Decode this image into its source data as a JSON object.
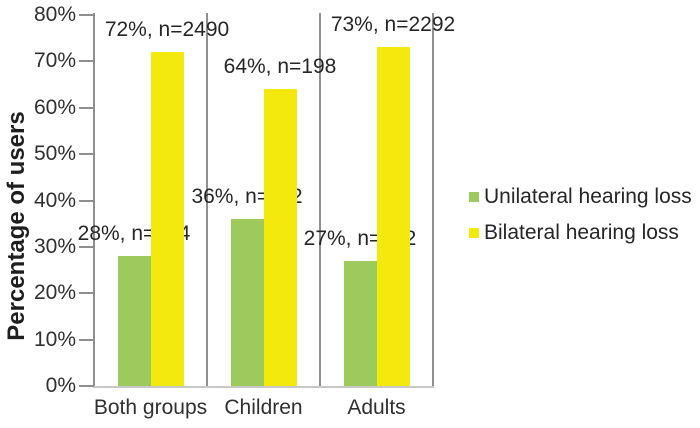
{
  "chart_data": {
    "type": "bar",
    "title": "",
    "xlabel": "",
    "ylabel": "Percentage of users",
    "categories": [
      "Both groups",
      "Children",
      "Adults"
    ],
    "series": [
      {
        "name": "Unilateral hearing loss",
        "color": "#9cca5d",
        "values": [
          28,
          36,
          27
        ],
        "counts": [
          974,
          112,
          862
        ],
        "data_labels": [
          "28%, n=974",
          "36%, n=112",
          "27%, n=862"
        ]
      },
      {
        "name": "Bilateral hearing loss",
        "color": "#f4e90d",
        "values": [
          72,
          64,
          73
        ],
        "counts": [
          2490,
          198,
          2292
        ],
        "data_labels": [
          "72%, n=2490",
          "64%, n=198",
          "73%, n=2292"
        ]
      }
    ],
    "ylim": [
      0,
      80
    ],
    "ytick_labels": [
      "0%",
      "10%",
      "20%",
      "30%",
      "40%",
      "50%",
      "60%",
      "70%",
      "80%"
    ],
    "grid": "vertical category separators only",
    "legend_position": "right"
  },
  "colors": {
    "axis_line": "#8f8f8f",
    "baseline": "#c8c8c8",
    "text": "#303030"
  }
}
